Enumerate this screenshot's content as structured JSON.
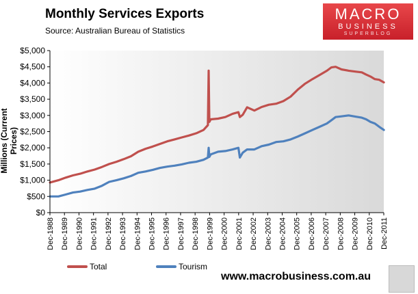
{
  "header": {
    "title": "Monthly  Services Exports",
    "source": "Source:  Australian Bureau of Statistics"
  },
  "logo": {
    "line1": "MACRO",
    "line2": "BUSINESS",
    "line3": "SUPERBLOG"
  },
  "footer": {
    "url": "www.macrobusiness.com.au"
  },
  "colors": {
    "total": "#c0504d",
    "tourism": "#4f81bd",
    "plot_bg_start": "#ffffff",
    "plot_bg_end": "#dcdcdc"
  },
  "chart_data": {
    "type": "line",
    "title": "Monthly  Services Exports",
    "xlabel": "",
    "ylabel": "Millions (Current Prices)",
    "ylim": [
      0,
      5000
    ],
    "xlim": [
      1988.917,
      2011.917
    ],
    "yticks": [
      0,
      500,
      1000,
      1500,
      2000,
      2500,
      3000,
      3500,
      4000,
      4500,
      5000
    ],
    "ytick_labels": [
      "$0",
      "$500",
      "$1,000",
      "$1,500",
      "$2,000",
      "$2,500",
      "$3,000",
      "$3,500",
      "$4,000",
      "$4,500",
      "$5,000"
    ],
    "xtick_labels": [
      "Dec-1988",
      "Dec-1989",
      "Dec-1990",
      "Dec-1991",
      "Dec-1992",
      "Dec-1993",
      "Dec-1994",
      "Dec-1995",
      "Dec-1996",
      "Dec-1997",
      "Dec-1998",
      "Dec-1999",
      "Dec-2000",
      "Dec-2001",
      "Dec-2002",
      "Dec-2003",
      "Dec-2004",
      "Dec-2005",
      "Dec-2006",
      "Dec-2007",
      "Dec-2008",
      "Dec-2009",
      "Dec-2010",
      "Dec-2011"
    ],
    "legend_position": "bottom-left",
    "series": [
      {
        "name": "Total",
        "x": [
          1988.92,
          1989.5,
          1990.0,
          1990.5,
          1991.0,
          1991.5,
          1992.0,
          1992.5,
          1993.0,
          1993.5,
          1994.0,
          1994.5,
          1995.0,
          1995.5,
          1996.0,
          1996.5,
          1997.0,
          1997.5,
          1998.0,
          1998.5,
          1999.0,
          1999.5,
          1999.8,
          1999.85,
          1999.9,
          2000.0,
          2000.5,
          2001.0,
          2001.5,
          2001.9,
          2002.0,
          2002.2,
          2002.5,
          2003.0,
          2003.5,
          2004.0,
          2004.5,
          2005.0,
          2005.5,
          2006.0,
          2006.5,
          2007.0,
          2007.5,
          2008.0,
          2008.3,
          2008.6,
          2009.0,
          2009.5,
          2010.0,
          2010.4,
          2010.7,
          2011.0,
          2011.3,
          2011.6,
          2011.92
        ],
        "values": [
          930,
          1000,
          1080,
          1150,
          1200,
          1270,
          1330,
          1410,
          1500,
          1570,
          1650,
          1740,
          1880,
          1970,
          2040,
          2120,
          2200,
          2260,
          2320,
          2380,
          2450,
          2550,
          2700,
          4380,
          2800,
          2880,
          2900,
          2950,
          3050,
          3100,
          2950,
          3020,
          3250,
          3150,
          3260,
          3330,
          3360,
          3440,
          3580,
          3800,
          3980,
          4120,
          4250,
          4380,
          4480,
          4500,
          4420,
          4380,
          4350,
          4330,
          4260,
          4200,
          4120,
          4100,
          4020
        ]
      },
      {
        "name": "Tourism",
        "x": [
          1988.92,
          1989.5,
          1990.0,
          1990.5,
          1991.0,
          1991.5,
          1992.0,
          1992.5,
          1993.0,
          1993.5,
          1994.0,
          1994.5,
          1995.0,
          1995.5,
          1996.0,
          1996.5,
          1997.0,
          1997.5,
          1998.0,
          1998.5,
          1999.0,
          1999.5,
          1999.8,
          1999.85,
          1999.9,
          2000.0,
          2000.5,
          2001.0,
          2001.5,
          2001.9,
          2002.0,
          2002.2,
          2002.5,
          2003.0,
          2003.5,
          2004.0,
          2004.5,
          2005.0,
          2005.5,
          2006.0,
          2006.5,
          2007.0,
          2007.5,
          2008.0,
          2008.3,
          2008.6,
          2009.0,
          2009.5,
          2010.0,
          2010.4,
          2010.7,
          2011.0,
          2011.3,
          2011.6,
          2011.92
        ],
        "values": [
          500,
          500,
          560,
          620,
          650,
          700,
          740,
          830,
          950,
          1000,
          1060,
          1130,
          1230,
          1270,
          1320,
          1380,
          1420,
          1450,
          1490,
          1540,
          1570,
          1630,
          1700,
          2000,
          1720,
          1800,
          1880,
          1900,
          1950,
          2000,
          1700,
          1850,
          1950,
          1950,
          2050,
          2100,
          2180,
          2200,
          2260,
          2350,
          2450,
          2550,
          2650,
          2750,
          2850,
          2950,
          2970,
          3000,
          2960,
          2930,
          2880,
          2800,
          2750,
          2650,
          2550
        ]
      }
    ]
  }
}
